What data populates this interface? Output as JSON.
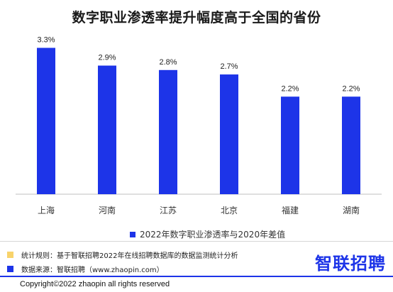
{
  "colors": {
    "bar": "#1d34e8",
    "note_yellow": "#f8d36b",
    "note_blue": "#1d34e8",
    "brand": "#1d34e8"
  },
  "chart_data": {
    "type": "bar",
    "title": "数字职业渗透率提升幅度高于全国的省份",
    "categories": [
      "上海",
      "河南",
      "江苏",
      "北京",
      "福建",
      "湖南"
    ],
    "series": [
      {
        "name": "2022年数字职业渗透率与2020年差值",
        "values": [
          3.3,
          2.9,
          2.8,
          2.7,
          2.2,
          2.2
        ]
      }
    ],
    "value_labels": [
      "3.3%",
      "2.9%",
      "2.8%",
      "2.7%",
      "2.2%",
      "2.2%"
    ],
    "ylim": [
      0,
      3.5
    ],
    "grid": false,
    "legend_position": "bottom"
  },
  "notes": {
    "rule": "统计规则：基于智联招聘2022年在线招聘数据库的数据监测统计分析",
    "source": "数据来源：智联招聘（www.zhaopin.com）"
  },
  "logo_text": "智联招聘",
  "copyright": "Copyright©2022 zhaopin all rights reserved"
}
